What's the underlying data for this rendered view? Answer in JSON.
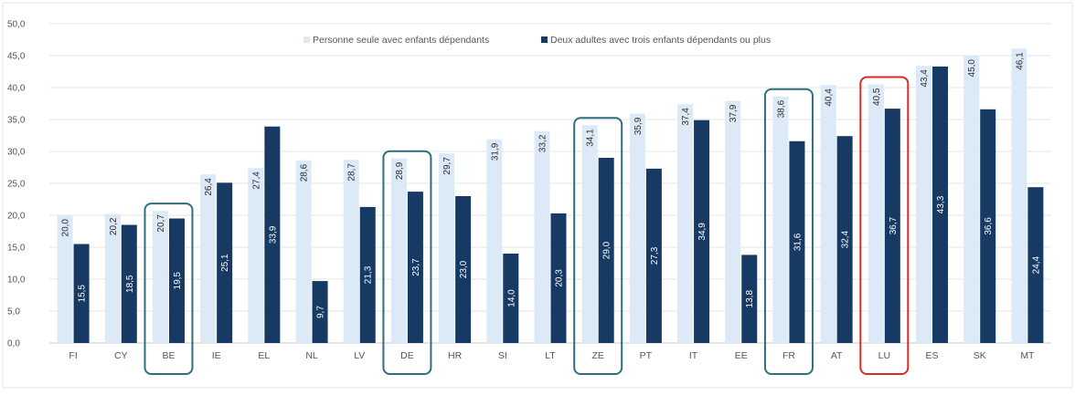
{
  "chart_data": {
    "type": "bar",
    "title": "",
    "xlabel": "",
    "ylabel": "",
    "ylim": [
      0,
      50
    ],
    "yticks": [
      "0,0",
      "5,0",
      "10,0",
      "15,0",
      "20,0",
      "25,0",
      "30,0",
      "35,0",
      "40,0",
      "45,0",
      "50,0"
    ],
    "grid": true,
    "legend_position": "top",
    "categories": [
      "FI",
      "CY",
      "BE",
      "IE",
      "EL",
      "NL",
      "LV",
      "DE",
      "HR",
      "SI",
      "LT",
      "ZE",
      "PT",
      "IT",
      "EE",
      "FR",
      "AT",
      "LU",
      "ES",
      "SK",
      "MT"
    ],
    "series": [
      {
        "name": "Personne seule avec enfants dépendants",
        "color": "#dce9f6",
        "values": [
          20.0,
          20.2,
          20.7,
          26.4,
          27.4,
          28.6,
          28.7,
          28.9,
          29.7,
          31.9,
          33.2,
          34.1,
          35.9,
          37.4,
          37.9,
          38.6,
          40.4,
          40.5,
          43.4,
          45.0,
          46.1
        ],
        "labels": [
          "20,0",
          "20,2",
          "20,7",
          "26,4",
          "27,4",
          "28,6",
          "28,7",
          "28,9",
          "29,7",
          "31,9",
          "33,2",
          "34,1",
          "35,9",
          "37,4",
          "37,9",
          "38,6",
          "40,4",
          "40,5",
          "43,4",
          "45,0",
          "46,1"
        ]
      },
      {
        "name": "Deux adultes avec trois enfants dépendants ou plus",
        "color": "#173a64",
        "values": [
          15.5,
          18.5,
          19.5,
          25.1,
          33.9,
          9.7,
          21.3,
          23.7,
          23.0,
          14.0,
          20.3,
          29.0,
          27.3,
          34.9,
          13.8,
          31.6,
          32.4,
          36.7,
          43.3,
          36.6,
          24.4
        ],
        "labels": [
          "15,5",
          "18,5",
          "19,5",
          "25,1",
          "33,9",
          "9,7",
          "21,3",
          "23,7",
          "23,0",
          "14,0",
          "20,3",
          "29,0",
          "27,3",
          "34,9",
          "13,8",
          "31,6",
          "32,4",
          "36,7",
          "43,3",
          "36,6",
          "24,4"
        ]
      }
    ],
    "highlights": [
      {
        "category": "BE",
        "color": "#2e6e7e"
      },
      {
        "category": "DE",
        "color": "#2e6e7e"
      },
      {
        "category": "ZE",
        "color": "#2e6e7e"
      },
      {
        "category": "FR",
        "color": "#2e6e7e"
      },
      {
        "category": "LU",
        "color": "#d62b2b"
      }
    ]
  }
}
